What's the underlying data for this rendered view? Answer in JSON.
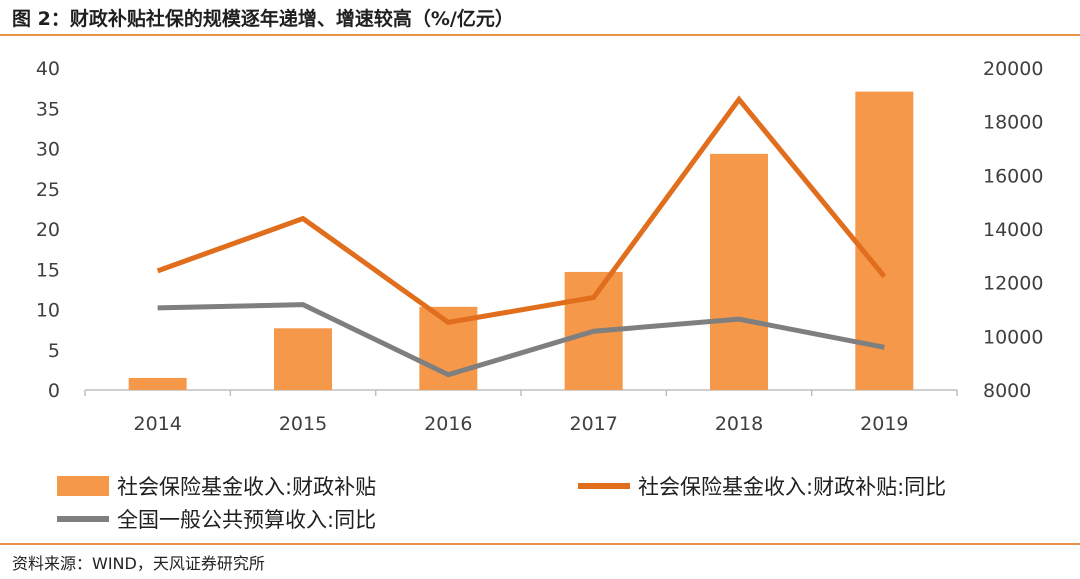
{
  "figure": {
    "title": "图 2：财政补贴社保的规模逐年递增、增速较高（%/亿元）",
    "source": "资料来源：WIND，天风证券研究所"
  },
  "colors": {
    "bar": "#f5984a",
    "line_subsidy_yoy": "#e06e1d",
    "line_budget_yoy": "#7f7f7f",
    "rule": "#e8954a",
    "axis": "#bfbfbf"
  },
  "chart_data": {
    "type": "bar",
    "categories": [
      "2014",
      "2015",
      "2016",
      "2017",
      "2018",
      "2019"
    ],
    "left_axis": {
      "ylim": [
        0,
        40
      ],
      "ticks": [
        "0",
        "5",
        "10",
        "15",
        "20",
        "25",
        "30",
        "35",
        "40"
      ]
    },
    "right_axis": {
      "ylim": [
        8000,
        20000
      ],
      "ticks": [
        "8000",
        "10000",
        "12000",
        "14000",
        "16000",
        "18000",
        "20000"
      ]
    },
    "series": [
      {
        "name": "社会保险基金收入:财政补贴",
        "type": "bar",
        "axis": "right",
        "values": [
          8450,
          10300,
          11100,
          12400,
          16800,
          19120
        ]
      },
      {
        "name": "社会保险基金收入:财政补贴:同比",
        "type": "line",
        "axis": "left",
        "values": [
          14.8,
          21.3,
          8.4,
          11.5,
          36.1,
          14.1
        ]
      },
      {
        "name": "全国一般公共预算收入:同比",
        "type": "line",
        "axis": "left",
        "values": [
          10.2,
          10.6,
          1.9,
          7.3,
          8.8,
          5.3
        ]
      }
    ],
    "grid": false,
    "legend": "bottom"
  }
}
